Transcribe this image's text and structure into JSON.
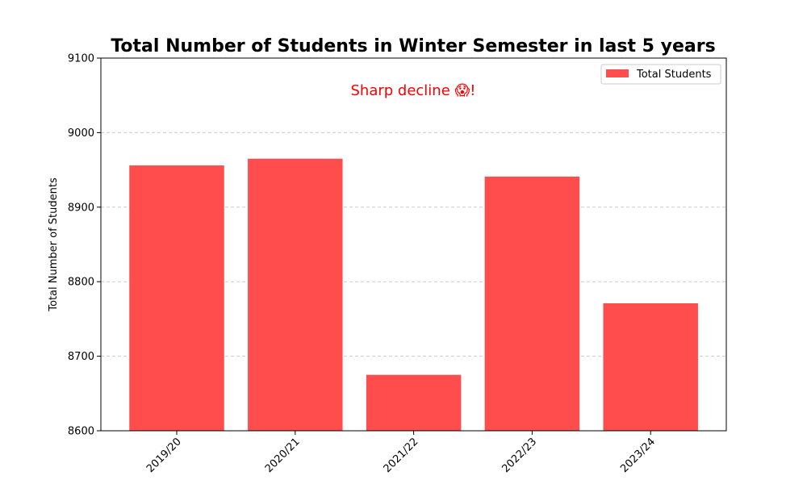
{
  "chart_data": {
    "type": "bar",
    "title": "Total Number of Students in Winter Semester in last 5 years",
    "xlabel": "",
    "ylabel": "Total Number of Students",
    "categories": [
      "2019/20",
      "2020/21",
      "2021/22",
      "2022/23",
      "2023/24"
    ],
    "series": [
      {
        "name": "Total Students",
        "values": [
          8956,
          8965,
          8675,
          8941,
          8771
        ]
      }
    ],
    "ylim": [
      8600,
      9100
    ],
    "yticks": [
      8600,
      8700,
      8800,
      8900,
      9000,
      9100
    ],
    "ytick_labels": [
      "8600",
      "8700",
      "8800",
      "8900",
      "9000",
      "9100"
    ],
    "grid": "horizontal dashed",
    "legend_placement": "top-right",
    "annotation": "Sharp decline 😱!",
    "colors": {
      "bar": "#ff4d4d",
      "annotation": "#ff0000",
      "grid": "#cccccc",
      "axis": "#000000"
    }
  }
}
